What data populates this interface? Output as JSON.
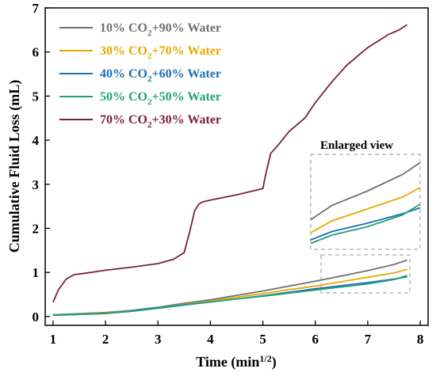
{
  "chart_data": {
    "type": "line",
    "xlabel": "Time (min",
    "xlabel_sup": "1/2",
    "xlabel_end": ")",
    "ylabel": "Cumulative Fluid Loss (mL)",
    "xlim": [
      0.85,
      8.15
    ],
    "ylim": [
      -0.2,
      7.0
    ],
    "xticks": [
      1,
      2,
      3,
      4,
      5,
      6,
      7,
      8
    ],
    "yticks": [
      0,
      1,
      2,
      3,
      4,
      5,
      6,
      7
    ],
    "grid": false,
    "legend_position": "top-left",
    "inset_title": "Enlarged view",
    "series": [
      {
        "name": "10% CO2+90% Water",
        "label_parts": [
          "10% CO",
          "2",
          "+90% Water"
        ],
        "color": "#707070",
        "x": [
          1.0,
          2.0,
          2.5,
          3.0,
          3.5,
          4.0,
          4.5,
          5.0,
          5.5,
          6.0,
          6.5,
          7.0,
          7.5,
          7.75
        ],
        "y": [
          0.04,
          0.09,
          0.14,
          0.21,
          0.3,
          0.38,
          0.48,
          0.58,
          0.69,
          0.8,
          0.92,
          1.04,
          1.18,
          1.28
        ]
      },
      {
        "name": "30% CO2+70% Water",
        "label_parts": [
          "30% CO",
          "2",
          "+70% Water"
        ],
        "color": "#E8A800",
        "x": [
          1.0,
          2.0,
          2.5,
          3.0,
          3.5,
          4.0,
          4.5,
          5.0,
          5.5,
          6.0,
          6.5,
          7.0,
          7.5,
          7.75
        ],
        "y": [
          0.03,
          0.08,
          0.13,
          0.2,
          0.28,
          0.35,
          0.44,
          0.52,
          0.61,
          0.69,
          0.79,
          0.89,
          0.99,
          1.07
        ]
      },
      {
        "name": "40% CO2+60% Water",
        "label_parts": [
          "40% CO",
          "2",
          "+60% Water"
        ],
        "color": "#1F6FB4",
        "x": [
          1.0,
          2.0,
          2.5,
          3.0,
          3.5,
          4.0,
          4.5,
          5.0,
          5.5,
          6.0,
          6.5,
          7.0,
          7.5,
          7.75
        ],
        "y": [
          0.03,
          0.07,
          0.12,
          0.19,
          0.26,
          0.33,
          0.4,
          0.47,
          0.55,
          0.63,
          0.7,
          0.77,
          0.85,
          0.9
        ]
      },
      {
        "name": "50% CO2+50% Water",
        "label_parts": [
          "50% CO",
          "2",
          "+50% Water"
        ],
        "color": "#1FA07A",
        "x": [
          1.0,
          2.0,
          2.5,
          3.0,
          3.5,
          4.0,
          4.5,
          5.0,
          5.5,
          6.0,
          6.5,
          7.0,
          7.5,
          7.75
        ],
        "y": [
          0.03,
          0.07,
          0.13,
          0.2,
          0.27,
          0.33,
          0.4,
          0.46,
          0.53,
          0.6,
          0.67,
          0.74,
          0.84,
          0.93
        ]
      },
      {
        "name": "70% CO2+30% Water",
        "label_parts": [
          "70% CO",
          "2",
          "+30% Water"
        ],
        "color": "#7A1F3F",
        "x": [
          1.0,
          1.1,
          1.25,
          1.4,
          1.6,
          2.0,
          2.5,
          3.0,
          3.3,
          3.5,
          3.6,
          3.7,
          3.78,
          3.85,
          4.0,
          4.5,
          5.0,
          5.05,
          5.15,
          5.3,
          5.5,
          5.8,
          6.0,
          6.3,
          6.6,
          7.0,
          7.4,
          7.6,
          7.75
        ],
        "y": [
          0.32,
          0.6,
          0.85,
          0.95,
          0.98,
          1.05,
          1.12,
          1.2,
          1.3,
          1.45,
          1.9,
          2.4,
          2.55,
          2.6,
          2.64,
          2.76,
          2.9,
          3.2,
          3.7,
          3.9,
          4.2,
          4.5,
          4.85,
          5.3,
          5.7,
          6.1,
          6.4,
          6.5,
          6.62
        ]
      }
    ]
  }
}
